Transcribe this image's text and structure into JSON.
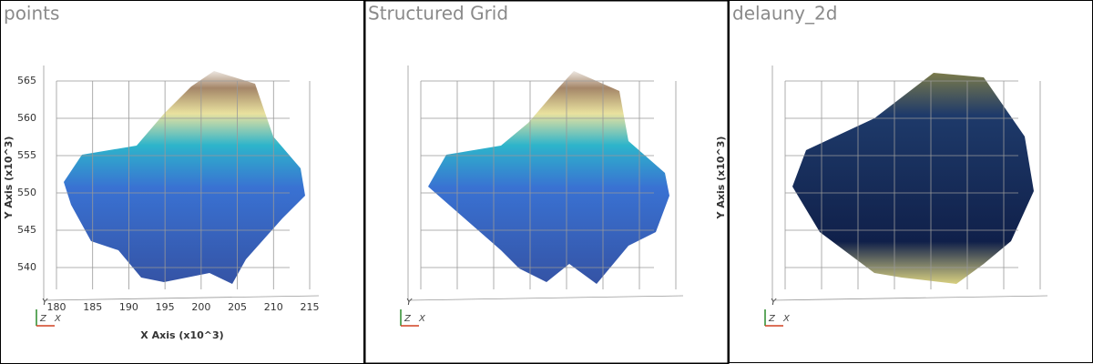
{
  "panels": [
    {
      "title": "points",
      "x_axis": {
        "label": "X Axis (x10^3)",
        "ticks": [
          180,
          185,
          190,
          195,
          200,
          205,
          210,
          215
        ]
      },
      "y_axis": {
        "label": "Y Axis (x10^3)",
        "ticks": [
          540,
          545,
          550,
          555,
          560,
          565
        ]
      },
      "orientation": {
        "y": "Y",
        "z": "Z",
        "x": "X"
      }
    },
    {
      "title": "Structured Grid",
      "orientation": {
        "y": "Y",
        "z": "Z",
        "x": "X"
      }
    },
    {
      "title": "delauny_2d",
      "y_axis": {
        "label": "Y Axis (x10^3)"
      },
      "orientation": {
        "y": "Y",
        "z": "Z",
        "x": "X"
      }
    }
  ]
}
